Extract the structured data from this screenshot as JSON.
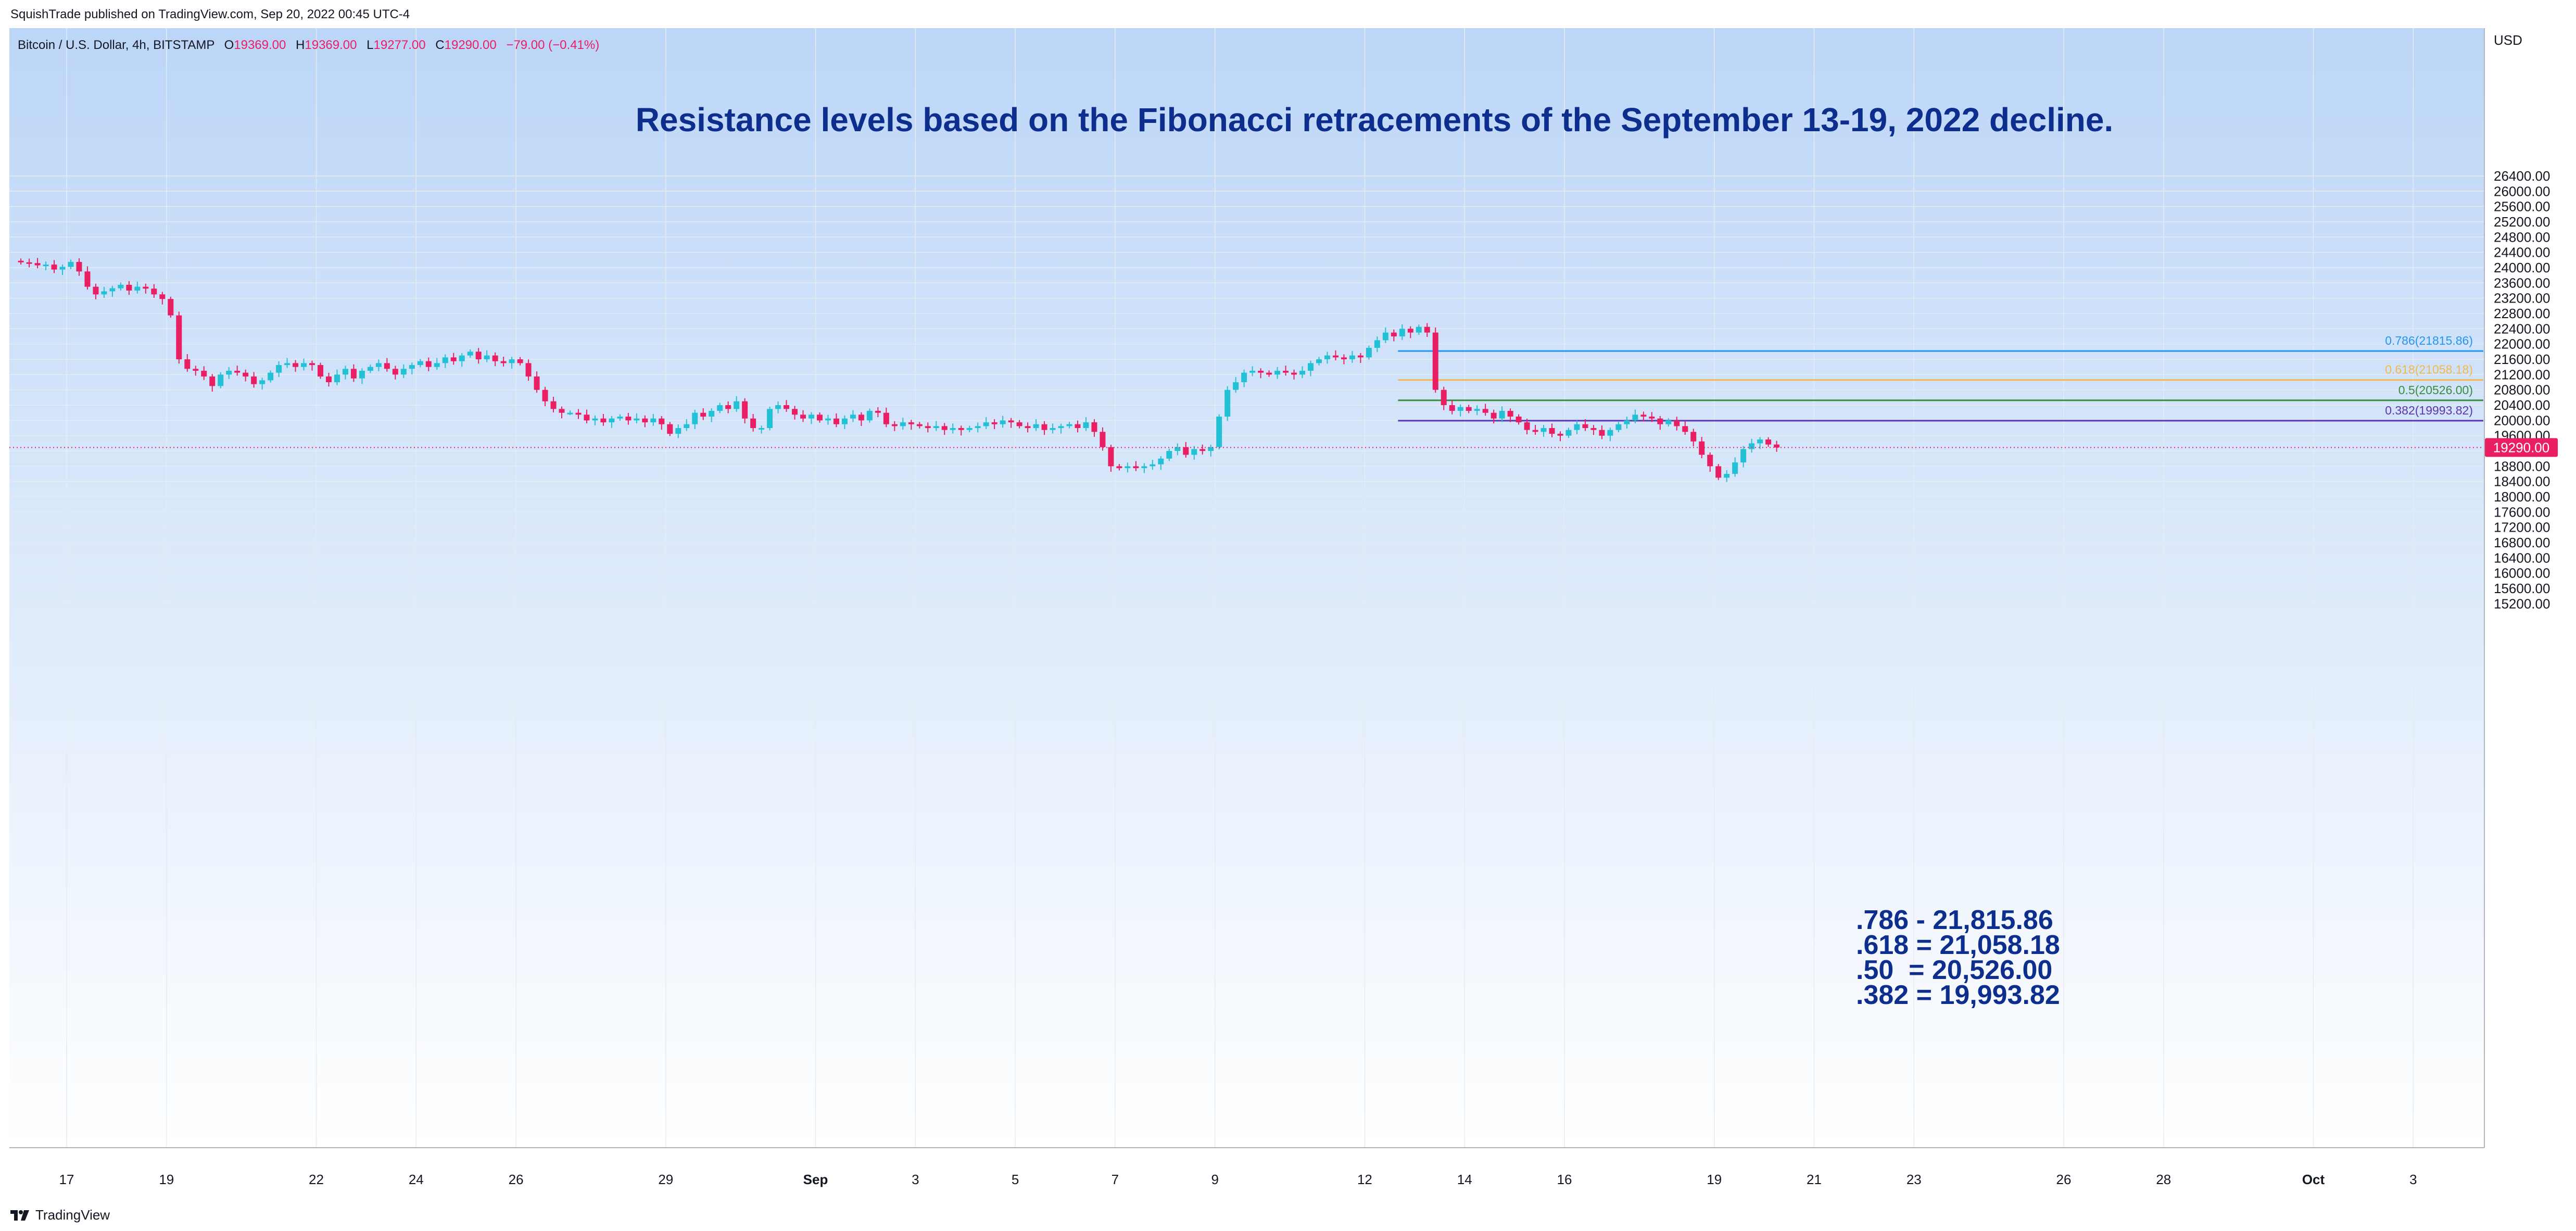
{
  "header": {
    "published_line": "SquishTrade published on TradingView.com, Sep 20, 2022 00:45 UTC-4"
  },
  "footer": {
    "brand": "TradingView",
    "logo_icon": "tradingview-logo-icon"
  },
  "colors": {
    "up": "#22c1d6",
    "down": "#e91e63",
    "title": "#0d2e8c",
    "axis_text": "#131722",
    "price_badge": "#e91e63",
    "bg_top": "#bcd6f7",
    "bg_bottom": "#ffffff"
  },
  "legend": {
    "symbol": "Bitcoin / U.S. Dollar, 4h, BITSTAMP",
    "open_label": "O",
    "open": "19369.00",
    "high_label": "H",
    "high": "19369.00",
    "low_label": "L",
    "low": "19277.00",
    "close_label": "C",
    "close": "19290.00",
    "change": "−79.00 (−0.41%)"
  },
  "annotations": {
    "title": "Resistance levels based on the Fibonacci retracements of the September 13-19, 2022 decline.",
    "fib_text": [
      ".786 - 21,815.86",
      ".618 = 21,058.18",
      ".50  = 20,526.00",
      ".382 = 19,993.82"
    ]
  },
  "chart_data": {
    "type": "candlestick",
    "currency": "USD",
    "ylim": [
      15000,
      26800
    ],
    "yticks": [
      15200,
      15600,
      16000,
      16400,
      16800,
      17200,
      17600,
      18000,
      18400,
      18800,
      19200,
      19600,
      20000,
      20400,
      20800,
      21200,
      21600,
      22000,
      22400,
      22800,
      23200,
      23600,
      24000,
      24400,
      24800,
      25200,
      25600,
      26000,
      26400
    ],
    "xticks": [
      {
        "label": "17",
        "date": "2022-08-17"
      },
      {
        "label": "19",
        "date": "2022-08-19"
      },
      {
        "label": "22",
        "date": "2022-08-22"
      },
      {
        "label": "24",
        "date": "2022-08-24"
      },
      {
        "label": "26",
        "date": "2022-08-26"
      },
      {
        "label": "29",
        "date": "2022-08-29"
      },
      {
        "label": "Sep",
        "date": "2022-09-01"
      },
      {
        "label": "3",
        "date": "2022-09-03"
      },
      {
        "label": "5",
        "date": "2022-09-05"
      },
      {
        "label": "7",
        "date": "2022-09-07"
      },
      {
        "label": "9",
        "date": "2022-09-09"
      },
      {
        "label": "12",
        "date": "2022-09-12"
      },
      {
        "label": "14",
        "date": "2022-09-14"
      },
      {
        "label": "16",
        "date": "2022-09-16"
      },
      {
        "label": "19",
        "date": "2022-09-19"
      },
      {
        "label": "21",
        "date": "2022-09-21"
      },
      {
        "label": "23",
        "date": "2022-09-23"
      },
      {
        "label": "26",
        "date": "2022-09-26"
      },
      {
        "label": "28",
        "date": "2022-09-28"
      },
      {
        "label": "Oct",
        "date": "2022-10-01"
      },
      {
        "label": "3",
        "date": "2022-10-03"
      }
    ],
    "last_price": 19290.0,
    "fib_levels": [
      {
        "label": "0.786(21815.86)",
        "value": 21815.86,
        "color": "#2196f3",
        "start": "2022-09-12"
      },
      {
        "label": "0.618(21058.18)",
        "value": 21058.18,
        "color": "#f2b84b",
        "start": "2022-09-12"
      },
      {
        "label": "0.5(20526.00)",
        "value": 20526.0,
        "color": "#388e3c",
        "start": "2022-09-12"
      },
      {
        "label": "0.382(19993.82)",
        "value": 19993.82,
        "color": "#5e35b1",
        "start": "2022-09-12"
      }
    ],
    "series": [
      {
        "date": "2022-08-16",
        "closes": [
          24140,
          24120,
          24060,
          24080,
          23950,
          24020
        ]
      },
      {
        "date": "2022-08-17",
        "closes": [
          24150,
          23900,
          23500,
          23300,
          23380,
          23460
        ]
      },
      {
        "date": "2022-08-18",
        "closes": [
          23550,
          23400,
          23500,
          23450,
          23300,
          23180
        ]
      },
      {
        "date": "2022-08-19",
        "closes": [
          22750,
          21600,
          21350,
          21300,
          21150,
          20900
        ]
      },
      {
        "date": "2022-08-20",
        "closes": [
          21200,
          21300,
          21250,
          21150,
          20950,
          21050
        ]
      },
      {
        "date": "2022-08-21",
        "closes": [
          21250,
          21450,
          21500,
          21400,
          21500,
          21450
        ]
      },
      {
        "date": "2022-08-22",
        "closes": [
          21150,
          21000,
          21200,
          21350,
          21100,
          21300
        ]
      },
      {
        "date": "2022-08-23",
        "closes": [
          21400,
          21500,
          21350,
          21200,
          21350,
          21450
        ]
      },
      {
        "date": "2022-08-24",
        "closes": [
          21550,
          21400,
          21500,
          21650,
          21550,
          21700
        ]
      },
      {
        "date": "2022-08-25",
        "closes": [
          21800,
          21600,
          21700,
          21550,
          21500,
          21600
        ]
      },
      {
        "date": "2022-08-26",
        "closes": [
          21500,
          21150,
          20800,
          20500,
          20300,
          20200
        ]
      },
      {
        "date": "2022-08-27",
        "closes": [
          20200,
          20150,
          20000,
          20050,
          19950,
          20050
        ]
      },
      {
        "date": "2022-08-28",
        "closes": [
          20100,
          20000,
          20050,
          19950,
          20050,
          19900
        ]
      },
      {
        "date": "2022-08-29",
        "closes": [
          19650,
          19800,
          19900,
          20200,
          20100,
          20250
        ]
      },
      {
        "date": "2022-08-30",
        "closes": [
          20400,
          20300,
          20500,
          20050,
          19800,
          19800
        ]
      },
      {
        "date": "2022-08-31",
        "closes": [
          20300,
          20400,
          20300,
          20150,
          20050,
          20150
        ]
      },
      {
        "date": "2022-09-01",
        "closes": [
          20000,
          20050,
          19900,
          20050,
          20150,
          20000
        ]
      },
      {
        "date": "2022-09-02",
        "closes": [
          20250,
          20200,
          19900,
          19850,
          19950,
          19900
        ]
      },
      {
        "date": "2022-09-03",
        "closes": [
          19850,
          19800,
          19850,
          19750,
          19800,
          19750
        ]
      },
      {
        "date": "2022-09-04",
        "closes": [
          19800,
          19850,
          19950,
          19900,
          20000,
          19950
        ]
      },
      {
        "date": "2022-09-05",
        "closes": [
          19850,
          19800,
          19900,
          19750,
          19800,
          19850
        ]
      },
      {
        "date": "2022-09-06",
        "closes": [
          19900,
          19800,
          19950,
          19700,
          19300,
          18800
        ]
      },
      {
        "date": "2022-09-07",
        "closes": [
          18750,
          18800,
          18750,
          18800,
          18850,
          19000
        ]
      },
      {
        "date": "2022-09-08",
        "closes": [
          19200,
          19300,
          19100,
          19250,
          19200,
          19300
        ]
      },
      {
        "date": "2022-09-09",
        "closes": [
          20100,
          20800,
          21000,
          21250,
          21300,
          21250
        ]
      },
      {
        "date": "2022-09-10",
        "closes": [
          21200,
          21300,
          21250,
          21200,
          21300,
          21500
        ]
      },
      {
        "date": "2022-09-11",
        "closes": [
          21600,
          21700,
          21650,
          21600,
          21700,
          21650
        ]
      },
      {
        "date": "2022-09-12",
        "closes": [
          21900,
          22100,
          22300,
          22200,
          22400,
          22300
        ]
      },
      {
        "date": "2022-09-13",
        "closes": [
          22450,
          22300,
          20800,
          20400,
          20250,
          20350
        ]
      },
      {
        "date": "2022-09-14",
        "closes": [
          20250,
          20300,
          20200,
          20050,
          20250,
          20100
        ]
      },
      {
        "date": "2022-09-15",
        "closes": [
          19950,
          19750,
          19700,
          19800,
          19650,
          19600
        ]
      },
      {
        "date": "2022-09-16",
        "closes": [
          19750,
          19900,
          19800,
          19750,
          19600,
          19750
        ]
      },
      {
        "date": "2022-09-17",
        "closes": [
          19900,
          20000,
          20150,
          20100,
          20050,
          19900
        ]
      },
      {
        "date": "2022-09-18",
        "closes": [
          20000,
          19850,
          19700,
          19450,
          19100,
          18800
        ]
      },
      {
        "date": "2022-09-19",
        "closes": [
          18500,
          18600,
          18900,
          19250,
          19400,
          19500
        ]
      },
      {
        "date": "2022-09-20",
        "closes": [
          19369,
          19290
        ]
      }
    ]
  }
}
